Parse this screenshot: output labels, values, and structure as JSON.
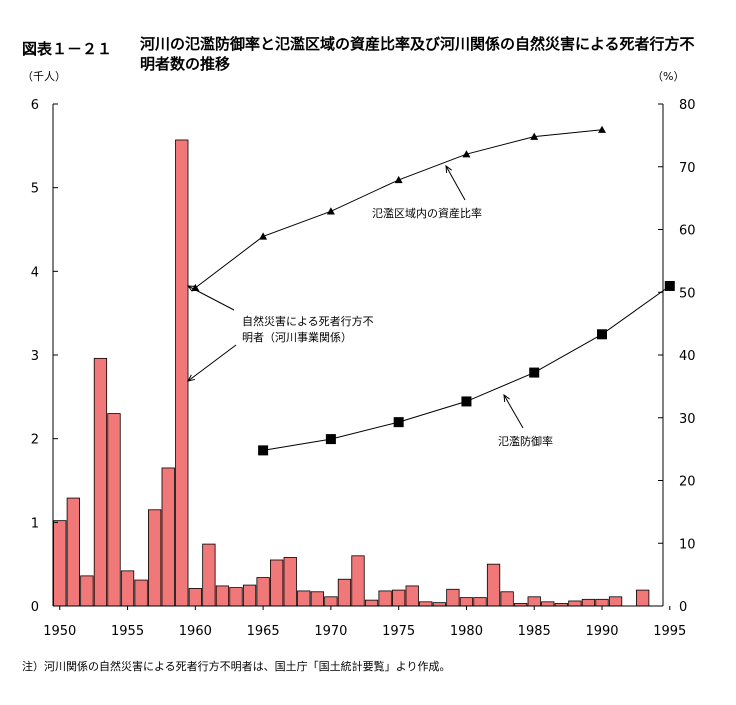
{
  "figure": {
    "label": "図表１－２１",
    "title": "河川の氾濫防御率と氾濫区域の資産比率及び河川関係の自然災害による死者行方不明者数の推移",
    "unit_left": "（千人）",
    "unit_right": "（%）",
    "note": "注）河川関係の自然災害による死者行方不明者は、国土庁「国土統計要覧」より作成。"
  },
  "chart_data": {
    "type": "bar",
    "x_ticks": [
      "1950",
      "1955",
      "1960",
      "1965",
      "1970",
      "1975",
      "1980",
      "1985",
      "1990",
      "1995"
    ],
    "y_left": {
      "range": [
        0,
        6
      ],
      "ticks": [
        "0",
        "1",
        "2",
        "3",
        "4",
        "5",
        "6"
      ]
    },
    "y_right": {
      "range": [
        0,
        80
      ],
      "ticks": [
        "0",
        "10",
        "20",
        "30",
        "40",
        "50",
        "60",
        "70",
        "80"
      ]
    },
    "grid": false,
    "series": [
      {
        "type": "bar",
        "axis": "left",
        "color": "#f07878",
        "x": [
          1950,
          1951,
          1952,
          1953,
          1954,
          1955,
          1956,
          1957,
          1958,
          1959,
          1960,
          1961,
          1962,
          1963,
          1964,
          1965,
          1966,
          1967,
          1968,
          1969,
          1970,
          1971,
          1972,
          1973,
          1974,
          1975,
          1976,
          1977,
          1978,
          1979,
          1980,
          1981,
          1982,
          1983,
          1984,
          1985,
          1986,
          1987,
          1988,
          1989,
          1990,
          1991,
          1993
        ],
        "values": [
          1.02,
          1.29,
          0.36,
          2.96,
          2.3,
          0.42,
          0.31,
          1.15,
          1.65,
          5.57,
          0.21,
          0.74,
          0.24,
          0.22,
          0.25,
          0.34,
          0.55,
          0.58,
          0.18,
          0.17,
          0.11,
          0.32,
          0.6,
          0.07,
          0.18,
          0.19,
          0.24,
          0.05,
          0.04,
          0.2,
          0.1,
          0.1,
          0.5,
          0.17,
          0.03,
          0.11,
          0.05,
          0.03,
          0.06,
          0.08,
          0.08,
          0.11,
          0.19
        ]
      },
      {
        "type": "line",
        "axis": "right",
        "marker": "triangle",
        "x": [
          1960,
          1965,
          1970,
          1975,
          1980,
          1985,
          1990
        ],
        "values": [
          50.7,
          58.9,
          62.9,
          67.9,
          72.0,
          74.8,
          75.9
        ]
      },
      {
        "type": "line",
        "axis": "right",
        "marker": "square",
        "x": [
          1965,
          1970,
          1975,
          1980,
          1985,
          1990,
          1995
        ],
        "values": [
          24.8,
          26.6,
          29.3,
          32.6,
          37.2,
          43.3,
          51.0
        ]
      }
    ],
    "annotations": [
      {
        "text": "氾濫区域内の資産比率",
        "target": "triangle-series"
      },
      {
        "text": "自然災害による死者行方不",
        "target": "bar-series"
      },
      {
        "text": "明者（河川事業関係）",
        "target": "bar-series"
      },
      {
        "text": "氾濫防御率",
        "target": "square-series"
      }
    ]
  }
}
